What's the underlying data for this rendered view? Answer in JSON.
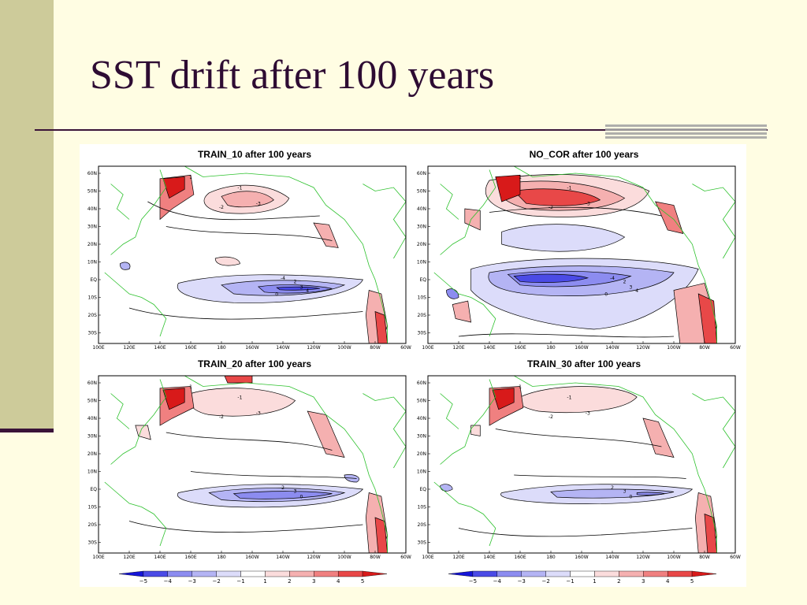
{
  "slide": {
    "title": "SST drift after 100 years"
  },
  "chart_data": [
    {
      "type": "heatmap",
      "title": "TRAIN_10 after 100 years",
      "x_ticks": [
        "100E",
        "120E",
        "140E",
        "160E",
        "180",
        "160W",
        "140W",
        "120W",
        "100W",
        "80W",
        "60W"
      ],
      "y_ticks": [
        "60N",
        "50N",
        "40N",
        "30N",
        "20N",
        "10N",
        "EQ",
        "10S",
        "20S",
        "30S"
      ],
      "contour_levels": [
        -5,
        -4,
        -3,
        -2,
        -1,
        1,
        2,
        3,
        4,
        5
      ],
      "contour_labels": [
        "1",
        "-1",
        "-2",
        "-3",
        "-4",
        "2",
        "3",
        "4",
        "0"
      ],
      "colorbar": [
        -5,
        -4,
        -3,
        -2,
        -1,
        1,
        2,
        3,
        4,
        5
      ]
    },
    {
      "type": "heatmap",
      "title": "NO_COR after 100 years",
      "x_ticks": [
        "100E",
        "120E",
        "140E",
        "160E",
        "180",
        "160W",
        "140W",
        "120W",
        "100W",
        "80W",
        "60W"
      ],
      "y_ticks": [
        "60N",
        "50N",
        "40N",
        "30N",
        "20N",
        "10N",
        "EQ",
        "10S",
        "20S",
        "30S"
      ],
      "contour_levels": [
        -5,
        -4,
        -3,
        -2,
        -1,
        1,
        2,
        3,
        4,
        5
      ],
      "contour_labels": [
        "1",
        "-1",
        "-2",
        "-3",
        "-4",
        "2",
        "3",
        "4",
        "0"
      ],
      "colorbar": [
        -5,
        -4,
        -3,
        -2,
        -1,
        1,
        2,
        3,
        4,
        5
      ]
    },
    {
      "type": "heatmap",
      "title": "TRAIN_20 after 100 years",
      "x_ticks": [
        "100E",
        "120E",
        "140E",
        "160E",
        "180",
        "160W",
        "140W",
        "120W",
        "100W",
        "80W",
        "60W"
      ],
      "y_ticks": [
        "60N",
        "50N",
        "40N",
        "30N",
        "20N",
        "10N",
        "EQ",
        "10S",
        "20S",
        "30S"
      ],
      "contour_levels": [
        -5,
        -4,
        -3,
        -2,
        -1,
        1,
        2,
        3,
        4,
        5
      ],
      "contour_labels": [
        "1",
        "-1",
        "-2",
        "-3",
        "2",
        "3",
        "0"
      ],
      "colorbar": [
        -5,
        -4,
        -3,
        -2,
        -1,
        1,
        2,
        3,
        4,
        5
      ]
    },
    {
      "type": "heatmap",
      "title": "TRAIN_30 after 100 years",
      "x_ticks": [
        "100E",
        "120E",
        "140E",
        "160E",
        "180",
        "160W",
        "140W",
        "120W",
        "100W",
        "80W",
        "60W"
      ],
      "y_ticks": [
        "60N",
        "50N",
        "40N",
        "30N",
        "20N",
        "10N",
        "EQ",
        "10S",
        "20S",
        "30S"
      ],
      "contour_levels": [
        -5,
        -4,
        -3,
        -2,
        -1,
        1,
        2,
        3,
        4,
        5
      ],
      "contour_labels": [
        "1",
        "-1",
        "-2",
        "-3",
        "2",
        "3",
        "0"
      ],
      "colorbar": [
        -5,
        -4,
        -3,
        -2,
        -1,
        1,
        2,
        3,
        4,
        5
      ]
    }
  ],
  "colors": {
    "neg5": "#1515D8",
    "neg4": "#4B4BE6",
    "neg3": "#8C8CF0",
    "neg2": "#B4B4F4",
    "neg1": "#DCDCFA",
    "zero": "#FFFFFF",
    "pos1": "#FBDCDC",
    "pos2": "#F5B0B0",
    "pos3": "#F08080",
    "pos4": "#E84848",
    "pos5": "#D81A1A",
    "coast": "#2CC12C"
  }
}
